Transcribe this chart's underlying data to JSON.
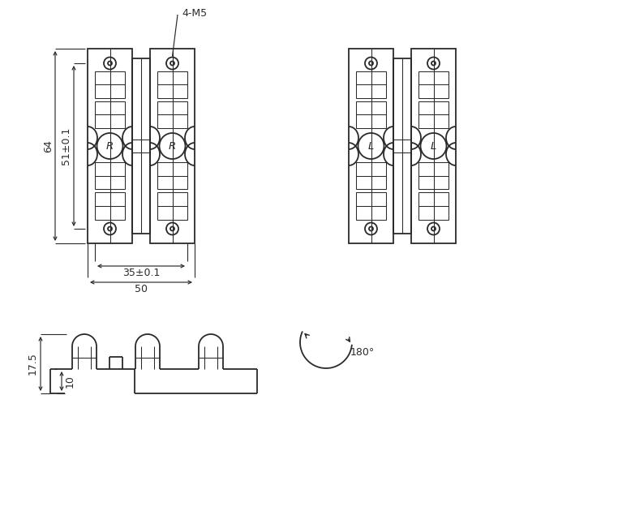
{
  "bg_color": "#ffffff",
  "line_color": "#2a2a2a",
  "lw": 1.3,
  "thin_lw": 0.75,
  "dim_color": "#2a2a2a",
  "font_size": 9,
  "annotations": {
    "4M5": "4-M5",
    "dim_64": "64",
    "dim_51": "51±0.1",
    "dim_35": "35±0.1",
    "dim_50": "50",
    "dim_175": "17.5",
    "dim_10": "10",
    "deg180": "180°"
  }
}
